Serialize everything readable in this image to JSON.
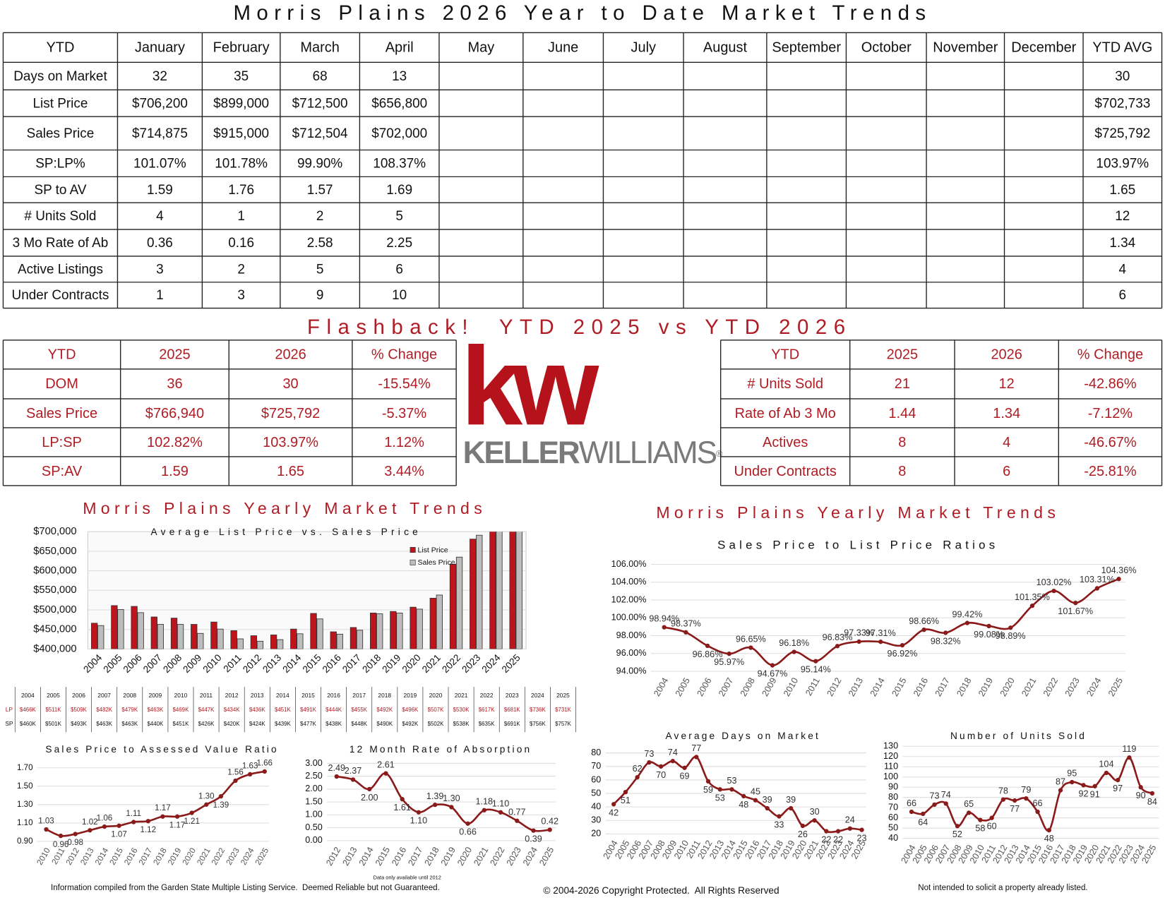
{
  "title": "Morris Plains 2026 Year to Date Market Trends",
  "ytd_table": {
    "header": [
      "YTD",
      "January",
      "February",
      "March",
      "April",
      "May",
      "June",
      "July",
      "August",
      "September",
      "October",
      "November",
      "December",
      "YTD AVG"
    ],
    "rows": [
      {
        "label": "Days on Market",
        "months": [
          "32",
          "35",
          "68",
          "13"
        ],
        "avg": "30"
      },
      {
        "label": "List Price",
        "months": [
          "$706,200",
          "$899,000",
          "$712,500",
          "$656,800"
        ],
        "avg": "$702,733"
      },
      {
        "label": "Sales Price",
        "months": [
          "$714,875",
          "$915,000",
          "$712,504",
          "$702,000"
        ],
        "avg": "$725,792"
      },
      {
        "label": "SP:LP%",
        "months": [
          "101.07%",
          "101.78%",
          "99.90%",
          "108.37%"
        ],
        "avg": "103.97%"
      },
      {
        "label": "SP to AV",
        "months": [
          "1.59",
          "1.76",
          "1.57",
          "1.69"
        ],
        "avg": "1.65"
      },
      {
        "label": "# Units Sold",
        "months": [
          "4",
          "1",
          "2",
          "5"
        ],
        "avg": "12"
      },
      {
        "label": "3 Mo Rate of Ab",
        "months": [
          "0.36",
          "0.16",
          "2.58",
          "2.25"
        ],
        "avg": "1.34"
      },
      {
        "label": "Active Listings",
        "months": [
          "3",
          "2",
          "5",
          "6"
        ],
        "avg": "4"
      },
      {
        "label": "Under Contracts",
        "months": [
          "1",
          "3",
          "9",
          "10"
        ],
        "avg": "6"
      }
    ]
  },
  "flashback_title": "Flashback!  YTD 2025 vs YTD 2026",
  "flashback_left": {
    "header": [
      "YTD",
      "2025",
      "2026",
      "% Change"
    ],
    "rows": [
      [
        "DOM",
        "36",
        "30",
        "-15.54%"
      ],
      [
        "Sales Price",
        "$766,940",
        "$725,792",
        "-5.37%"
      ],
      [
        "LP:SP",
        "102.82%",
        "103.97%",
        "1.12%"
      ],
      [
        "SP:AV",
        "1.59",
        "1.65",
        "3.44%"
      ]
    ]
  },
  "flashback_right": {
    "header": [
      "YTD",
      "2025",
      "2026",
      "% Change"
    ],
    "rows": [
      [
        "# Units Sold",
        "21",
        "12",
        "-42.86%"
      ],
      [
        "Rate of Ab 3 Mo",
        "1.44",
        "1.34",
        "-7.12%"
      ],
      [
        "Actives",
        "8",
        "4",
        "-46.67%"
      ],
      [
        "Under Contracts",
        "8",
        "6",
        "-25.81%"
      ]
    ]
  },
  "logo": {
    "mark": "kw",
    "name_bold": "KELLER",
    "name_light": "WILLIAMS",
    "registered": "®"
  },
  "chart_data": [
    {
      "type": "bar",
      "title": "Morris Plains Yearly Market Trends",
      "subtitle": "Average List Price vs. Sales Price",
      "categories": [
        "2004",
        "2005",
        "2006",
        "2007",
        "2008",
        "2009",
        "2010",
        "2011",
        "2012",
        "2013",
        "2014",
        "2015",
        "2016",
        "2017",
        "2018",
        "2019",
        "2020",
        "2021",
        "2022",
        "2023",
        "2024",
        "2025"
      ],
      "series": [
        {
          "name": "List Price",
          "short_name": "LP",
          "color": "#c0141c",
          "values": [
            466000,
            511000,
            509000,
            482000,
            479000,
            463000,
            469000,
            447000,
            434000,
            436000,
            451000,
            491000,
            444000,
            455000,
            492000,
            496000,
            507000,
            530000,
            617000,
            681000,
            736000,
            731000
          ],
          "value_labels": [
            "$466K",
            "$511K",
            "$509K",
            "$482K",
            "$479K",
            "$463K",
            "$469K",
            "$447K",
            "$434K",
            "$436K",
            "$451K",
            "$491K",
            "$444K",
            "$455K",
            "$492K",
            "$496K",
            "$507K",
            "$530K",
            "$617K",
            "$681K",
            "$736K",
            "$731K"
          ]
        },
        {
          "name": "Sales Price",
          "short_name": "SP",
          "color": "#bdbdbd",
          "values": [
            460000,
            501000,
            493000,
            463000,
            463000,
            440000,
            451000,
            426000,
            420000,
            424000,
            439000,
            477000,
            438000,
            448000,
            490000,
            492000,
            502000,
            538000,
            635000,
            691000,
            756000,
            757000
          ],
          "value_labels": [
            "$460K",
            "$501K",
            "$493K",
            "$463K",
            "$463K",
            "$440K",
            "$451K",
            "$426K",
            "$420K",
            "$424K",
            "$439K",
            "$477K",
            "$438K",
            "$448K",
            "$490K",
            "$492K",
            "$502K",
            "$538K",
            "$635K",
            "$691K",
            "$756K",
            "$757K"
          ]
        }
      ],
      "ylim": [
        400000,
        700000
      ],
      "yticks": [
        {
          "value": 400000,
          "label": "$400,000"
        },
        {
          "value": 450000,
          "label": "$450,000"
        },
        {
          "value": 500000,
          "label": "$500,000"
        },
        {
          "value": 550000,
          "label": "$550,000"
        },
        {
          "value": 600000,
          "label": "$600,000"
        },
        {
          "value": 650000,
          "label": "$650,000"
        },
        {
          "value": 700000,
          "label": "$700,000"
        }
      ],
      "grid": true
    },
    {
      "type": "line",
      "title": "Morris Plains Yearly Market Trends",
      "subtitle": "Sales Price to List Price Ratios",
      "categories": [
        "2004",
        "2005",
        "2006",
        "2007",
        "2008",
        "2009",
        "2010",
        "2011",
        "2012",
        "2013",
        "2014",
        "2015",
        "2016",
        "2017",
        "2018",
        "2019",
        "2020",
        "2021",
        "2022",
        "2023",
        "2024",
        "2025"
      ],
      "series": [
        {
          "name": "SP:LP",
          "color": "#8b1a1a",
          "values": [
            98.94,
            98.37,
            96.86,
            95.97,
            96.65,
            94.67,
            96.18,
            95.14,
            96.83,
            97.33,
            97.31,
            96.92,
            98.66,
            98.32,
            99.42,
            99.08,
            98.89,
            101.35,
            103.02,
            101.67,
            103.31,
            104.36
          ],
          "value_labels": [
            "98.94%",
            "98.37%",
            "96.86%",
            "95.97%",
            "96.65%",
            "94.67%",
            "96.18%",
            "95.14%",
            "96.83%",
            "97.33%",
            "97.31%",
            "96.92%",
            "98.66%",
            "98.32%",
            "99.42%",
            "99.08%",
            "98.89%",
            "101.35%",
            "103.02%",
            "101.67%",
            "103.31%",
            "104.36%"
          ]
        }
      ],
      "ylim": [
        94,
        106
      ],
      "yticks": [
        {
          "value": 94,
          "label": "94.00%"
        },
        {
          "value": 96,
          "label": "96.00%"
        },
        {
          "value": 98,
          "label": "98.00%"
        },
        {
          "value": 100,
          "label": "100.00%"
        },
        {
          "value": 102,
          "label": "102.00%"
        },
        {
          "value": 104,
          "label": "104.00%"
        },
        {
          "value": 106,
          "label": "106.00%"
        }
      ],
      "grid": true
    },
    {
      "type": "line",
      "title": "Sales Price to Assessed Value Ratio",
      "categories": [
        "2010",
        "2011",
        "2012",
        "2013",
        "2014",
        "2015",
        "2016",
        "2017",
        "2018",
        "2019",
        "2020",
        "2021",
        "2022",
        "2023",
        "2024",
        "2025"
      ],
      "series": [
        {
          "name": "SP:AV",
          "color": "#8b1a1a",
          "values": [
            1.03,
            0.96,
            0.98,
            1.02,
            1.06,
            1.07,
            1.11,
            1.12,
            1.17,
            1.17,
            1.21,
            1.3,
            1.39,
            1.56,
            1.63,
            1.66
          ],
          "value_labels": [
            "1.03",
            "0.96",
            "0.98",
            "1.02",
            "1.06",
            "1.07",
            "1.11",
            "1.12",
            "1.17",
            "1.17",
            "1.21",
            "1.30",
            "1.39",
            "1.56",
            "1.63",
            "1.66"
          ]
        }
      ],
      "ylim": [
        0.9,
        1.7
      ],
      "yticks": [
        {
          "value": 0.9,
          "label": "0.90"
        },
        {
          "value": 1.1,
          "label": "1.10"
        },
        {
          "value": 1.3,
          "label": "1.30"
        },
        {
          "value": 1.5,
          "label": "1.50"
        },
        {
          "value": 1.7,
          "label": "1.70"
        }
      ],
      "grid": true
    },
    {
      "type": "line",
      "title": "12 Month Rate of Absorption",
      "annotation": "Data only available until 2012",
      "categories": [
        "2012",
        "2013",
        "2014",
        "2015",
        "2016",
        "2017",
        "2018",
        "2019",
        "2020",
        "2021",
        "2022",
        "2023",
        "2024",
        "2025"
      ],
      "series": [
        {
          "name": "Absorption",
          "color": "#8b1a1a",
          "values": [
            2.49,
            2.37,
            2.0,
            2.61,
            1.61,
            1.1,
            1.39,
            1.3,
            0.66,
            1.18,
            1.1,
            0.77,
            0.39,
            0.42
          ],
          "value_labels": [
            "2.49",
            "2.37",
            "2.00",
            "2.61",
            "1.61",
            "1.10",
            "1.39",
            "1.30",
            "0.66",
            "1.18",
            "1.10",
            "0.77",
            "0.39",
            "0.42"
          ]
        }
      ],
      "ylim": [
        0,
        3
      ],
      "yticks": [
        {
          "value": 0,
          "label": "0.00"
        },
        {
          "value": 0.5,
          "label": "0.50"
        },
        {
          "value": 1,
          "label": "1.00"
        },
        {
          "value": 1.5,
          "label": "1.50"
        },
        {
          "value": 2,
          "label": "2.00"
        },
        {
          "value": 2.5,
          "label": "2.50"
        },
        {
          "value": 3,
          "label": "3.00"
        }
      ],
      "grid": true
    },
    {
      "type": "line",
      "title": "Average Days on Market",
      "categories": [
        "2004",
        "2005",
        "2006",
        "2007",
        "2008",
        "2009",
        "2010",
        "2011",
        "2012",
        "2013",
        "2014",
        "2015",
        "2016",
        "2017",
        "2018",
        "2019",
        "2020",
        "2021",
        "2022",
        "2023",
        "2024",
        "2025"
      ],
      "series": [
        {
          "name": "DOM",
          "color": "#8b1a1a",
          "values": [
            42,
            51,
            62,
            73,
            70,
            74,
            69,
            77,
            59,
            53,
            53,
            48,
            45,
            39,
            33,
            39,
            26,
            30,
            22,
            22,
            24,
            23
          ]
        }
      ],
      "ylim": [
        20,
        80
      ],
      "yticks": [
        20,
        30,
        40,
        50,
        60,
        70,
        80
      ],
      "grid": true
    },
    {
      "type": "line",
      "title": "Number of Units Sold",
      "categories": [
        "2004",
        "2005",
        "2006",
        "2007",
        "2008",
        "2009",
        "2010",
        "2011",
        "2012",
        "2013",
        "2014",
        "2015",
        "2016",
        "2017",
        "2018",
        "2019",
        "2020",
        "2021",
        "2022",
        "2023",
        "2024",
        "2025"
      ],
      "series": [
        {
          "name": "Units",
          "color": "#8b1a1a",
          "values": [
            66,
            64,
            73,
            74,
            52,
            65,
            58,
            60,
            78,
            77,
            79,
            66,
            48,
            87,
            95,
            92,
            91,
            104,
            97,
            119,
            90,
            84
          ]
        }
      ],
      "ylim": [
        40,
        130
      ],
      "yticks": [
        40,
        50,
        60,
        70,
        80,
        90,
        100,
        110,
        120,
        130
      ],
      "grid": true
    }
  ],
  "footer": {
    "left": "Information compiled from the Garden State Multiple Listing Service.  Deemed Reliable but not Guaranteed.",
    "center": "© 2004-2026 Copyright Protected.  All Rights Reserved",
    "right": "Not intended to solicit a property already listed."
  }
}
